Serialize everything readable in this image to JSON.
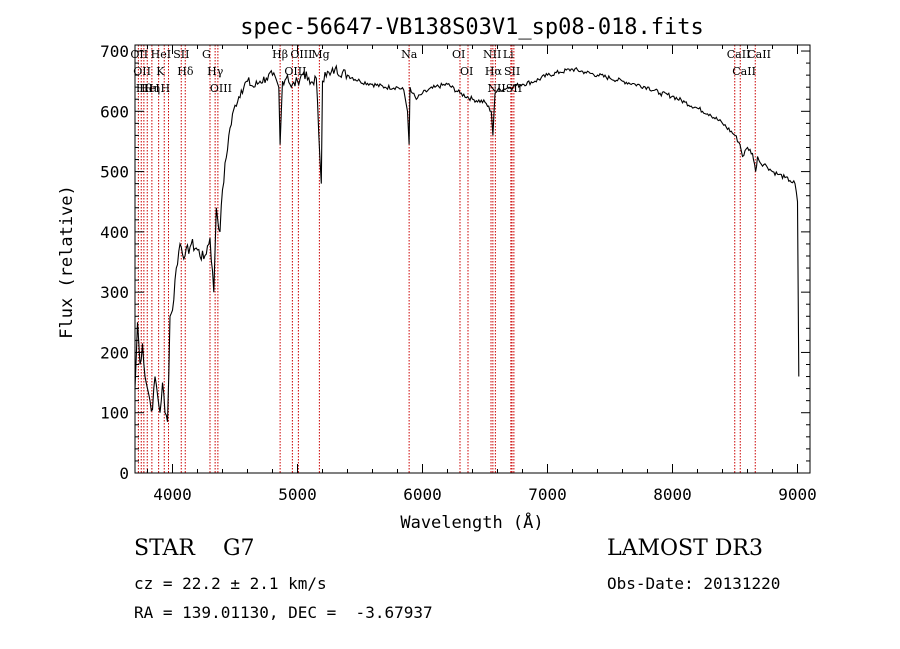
{
  "chart_data": {
    "type": "line",
    "title": "spec-56647-VB138S03V1_sp08-018.fits",
    "xlabel": "Wavelength (Å)",
    "ylabel": "Flux (relative)",
    "xlim": [
      3700,
      9100
    ],
    "ylim": [
      0,
      710
    ],
    "xticks": [
      4000,
      5000,
      6000,
      7000,
      8000,
      9000
    ],
    "yticks": [
      0,
      100,
      200,
      300,
      400,
      500,
      600,
      700
    ],
    "grid": false,
    "series": [
      {
        "x": [
          3700,
          3720,
          3740,
          3760,
          3780,
          3800,
          3820,
          3840,
          3860,
          3880,
          3900,
          3920,
          3940,
          3960,
          3980,
          4000,
          4030,
          4060,
          4100,
          4150,
          4200,
          4250,
          4300,
          4330,
          4350,
          4380,
          4400,
          4450,
          4500,
          4550,
          4600,
          4650,
          4700,
          4750,
          4800,
          4850,
          4861,
          4880,
          4920,
          4950,
          5000,
          5050,
          5100,
          5150,
          5180,
          5190,
          5200,
          5220,
          5260,
          5300,
          5400,
          5500,
          5600,
          5700,
          5800,
          5850,
          5880,
          5893,
          5900,
          5920,
          5950,
          6000,
          6100,
          6200,
          6300,
          6400,
          6500,
          6550,
          6563,
          6580,
          6600,
          6700,
          6800,
          6900,
          7000,
          7100,
          7200,
          7300,
          7400,
          7500,
          7600,
          7700,
          7800,
          7900,
          8000,
          8100,
          8200,
          8300,
          8400,
          8500,
          8540,
          8560,
          8600,
          8640,
          8665,
          8680,
          8700,
          8750,
          8800,
          8850,
          8900,
          8940,
          8980,
          9000,
          9010
        ],
        "values": [
          140,
          250,
          180,
          215,
          160,
          140,
          120,
          105,
          160,
          130,
          100,
          150,
          100,
          85,
          260,
          270,
          340,
          380,
          360,
          380,
          370,
          355,
          390,
          300,
          440,
          400,
          470,
          560,
          610,
          635,
          650,
          640,
          650,
          655,
          660,
          640,
          545,
          650,
          660,
          640,
          650,
          665,
          645,
          655,
          520,
          480,
          650,
          665,
          660,
          670,
          660,
          650,
          645,
          640,
          640,
          635,
          600,
          545,
          640,
          630,
          620,
          630,
          640,
          645,
          630,
          620,
          615,
          600,
          560,
          630,
          635,
          640,
          645,
          650,
          660,
          665,
          670,
          665,
          660,
          655,
          650,
          645,
          640,
          630,
          625,
          615,
          605,
          595,
          580,
          560,
          545,
          525,
          540,
          530,
          500,
          525,
          515,
          510,
          500,
          495,
          490,
          485,
          480,
          450,
          160
        ]
      }
    ],
    "lines": [
      {
        "x": 3727,
        "label": "OII"
      },
      {
        "x": 3750,
        "label": "OII"
      },
      {
        "x": 3771,
        "label": "Hθ"
      },
      {
        "x": 3798,
        "label": "HeI"
      },
      {
        "x": 3835,
        "label": "Hη"
      },
      {
        "x": 3889,
        "label": "HeI"
      },
      {
        "x": 3934,
        "label": "K"
      },
      {
        "x": 3968,
        "label": "H"
      },
      {
        "x": 4070,
        "label": "SII"
      },
      {
        "x": 4102,
        "label": "Hδ"
      },
      {
        "x": 4300,
        "label": "G"
      },
      {
        "x": 4341,
        "label": "Hγ"
      },
      {
        "x": 4363,
        "label": "OIII"
      },
      {
        "x": 4861,
        "label": "Hβ"
      },
      {
        "x": 4959,
        "label": "OIII"
      },
      {
        "x": 5007,
        "label": "OIII"
      },
      {
        "x": 5175,
        "label": "Mg"
      },
      {
        "x": 5893,
        "label": "Na"
      },
      {
        "x": 6300,
        "label": "OI"
      },
      {
        "x": 6364,
        "label": "OI"
      },
      {
        "x": 6548,
        "label": "NII"
      },
      {
        "x": 6563,
        "label": "Hα"
      },
      {
        "x": 6583,
        "label": "NII"
      },
      {
        "x": 6707,
        "label": "Li"
      },
      {
        "x": 6716,
        "label": "SII"
      },
      {
        "x": 6731,
        "label": "SII"
      },
      {
        "x": 8498,
        "label": "CaII"
      },
      {
        "x": 8542,
        "label": "CaII"
      },
      {
        "x": 8662,
        "label": "CaII"
      }
    ]
  },
  "info": {
    "class_line": "STAR    G7",
    "survey": "LAMOST DR3",
    "redshift": "cz = 22.2 ± 2.1 km/s",
    "obs_date": "Obs-Date: 20131220",
    "coords": "RA = 139.01130, DEC =  -3.67937"
  },
  "colors": {
    "line": "#000000",
    "marker": "#cc0000",
    "axis": "#000000"
  }
}
